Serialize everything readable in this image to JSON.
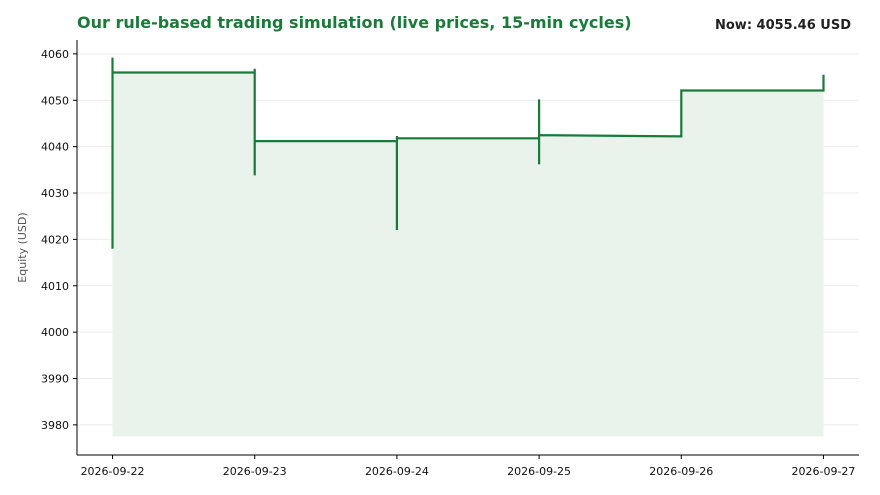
{
  "header": {
    "title": "Our rule-based trading simulation (live prices, 15-min cycles)",
    "now_label": "Now: 4055.46 USD"
  },
  "colors": {
    "line": "#1a7a3a",
    "fill": "#e9f3ec",
    "grid": "#ececec",
    "axis": "#000000"
  },
  "chart_data": {
    "type": "line",
    "title": "Our rule-based trading simulation (live prices, 15-min cycles)",
    "xlabel": "",
    "ylabel": "Equity (USD)",
    "ylim": [
      3973.5,
      4063
    ],
    "xlim": [
      "2026-09-21T18:00",
      "2026-09-27T06:00"
    ],
    "x_ticks": [
      "2026-09-22",
      "2026-09-23",
      "2026-09-24",
      "2026-09-25",
      "2026-09-26",
      "2026-09-27"
    ],
    "y_ticks": [
      3980,
      3990,
      4000,
      4010,
      4020,
      4030,
      4040,
      4050,
      4060
    ],
    "grid": "horizontal",
    "fill_baseline": 3977.5,
    "series": [
      {
        "points": [
          [
            "2026-09-22T00:00",
            4031.5
          ],
          [
            "2026-09-22T00:00",
            4018.0
          ],
          [
            "2026-09-22T00:00",
            4059.2
          ],
          [
            "2026-09-22T00:00",
            4056.0
          ],
          [
            "2026-09-23T00:00",
            4056.0
          ],
          [
            "2026-09-23T00:00",
            4056.8
          ],
          [
            "2026-09-23T00:00",
            4033.8
          ],
          [
            "2026-09-23T00:00",
            4041.2
          ],
          [
            "2026-09-24T00:00",
            4041.2
          ],
          [
            "2026-09-24T00:00",
            4042.3
          ],
          [
            "2026-09-24T00:00",
            4022.0
          ],
          [
            "2026-09-24T00:00",
            4041.8
          ],
          [
            "2026-09-25T00:00",
            4041.8
          ],
          [
            "2026-09-25T00:00",
            4050.2
          ],
          [
            "2026-09-25T00:00",
            4036.2
          ],
          [
            "2026-09-25T00:00",
            4042.5
          ],
          [
            "2026-09-26T00:00",
            4042.2
          ],
          [
            "2026-09-26T00:00",
            4052.1
          ],
          [
            "2026-09-27T00:00",
            4052.1
          ],
          [
            "2026-09-27T00:00",
            4055.5
          ]
        ]
      }
    ]
  }
}
